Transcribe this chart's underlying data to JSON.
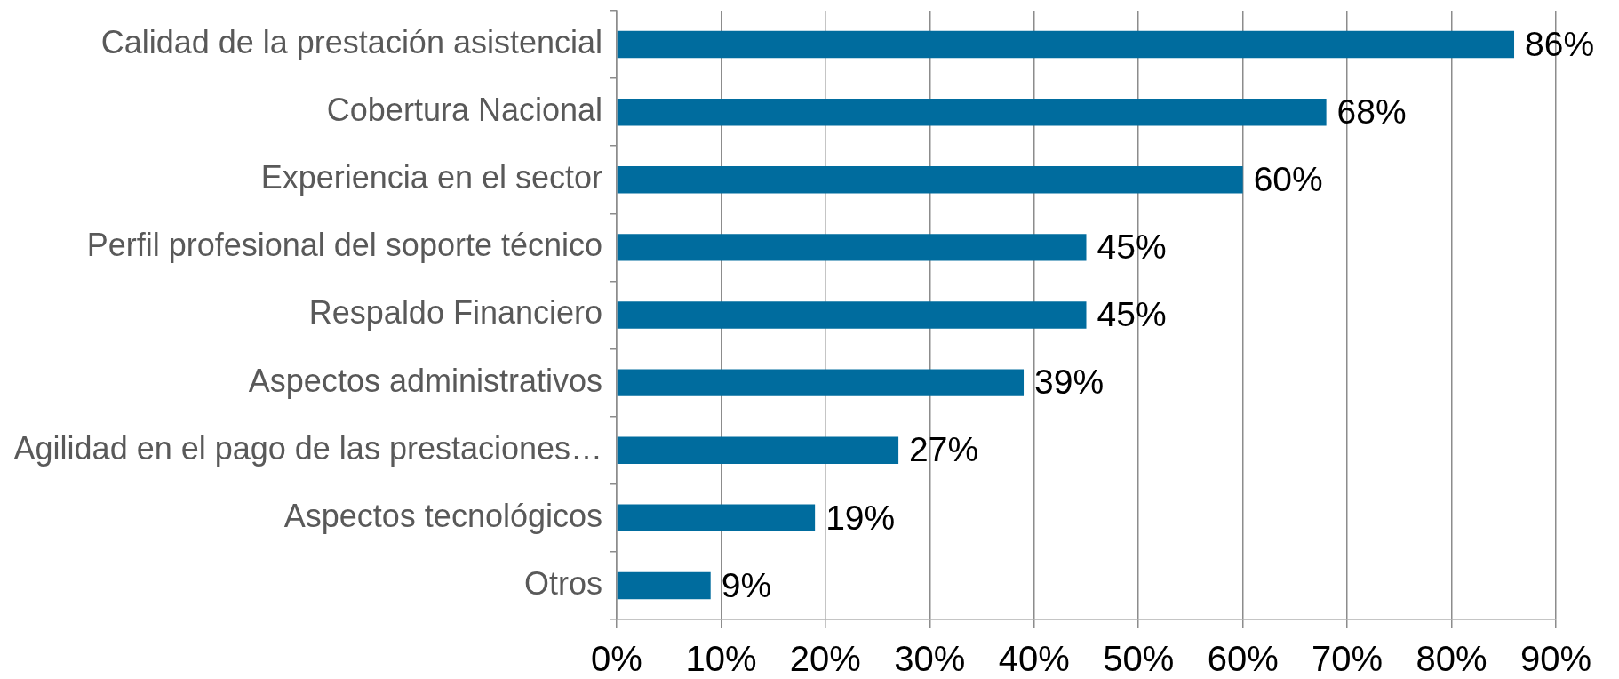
{
  "chart_data": {
    "type": "bar",
    "orientation": "horizontal",
    "categories": [
      "Calidad de la prestación asistencial",
      "Cobertura Nacional",
      "Experiencia en el sector",
      "Perfil profesional del soporte técnico",
      "Respaldo Financiero",
      "Aspectos administrativos",
      "Agilidad en el pago de las prestaciones…",
      "Aspectos tecnológicos",
      "Otros"
    ],
    "values": [
      86,
      68,
      60,
      45,
      45,
      39,
      27,
      19,
      9
    ],
    "value_labels": [
      "86%",
      "68%",
      "60%",
      "45%",
      "45%",
      "39%",
      "27%",
      "19%",
      "9%"
    ],
    "color": "#006c9e",
    "xlim": [
      0,
      90
    ],
    "xticks": [
      {
        "value": 0,
        "label": "0%"
      },
      {
        "value": 10,
        "label": "10%"
      },
      {
        "value": 20,
        "label": "20%"
      },
      {
        "value": 30,
        "label": "30%"
      },
      {
        "value": 40,
        "label": "40%"
      },
      {
        "value": 50,
        "label": "50%"
      },
      {
        "value": 60,
        "label": "60%"
      },
      {
        "value": 70,
        "label": "70%"
      },
      {
        "value": 80,
        "label": "80%"
      },
      {
        "value": 90,
        "label": "90%"
      }
    ],
    "grid": "x"
  }
}
